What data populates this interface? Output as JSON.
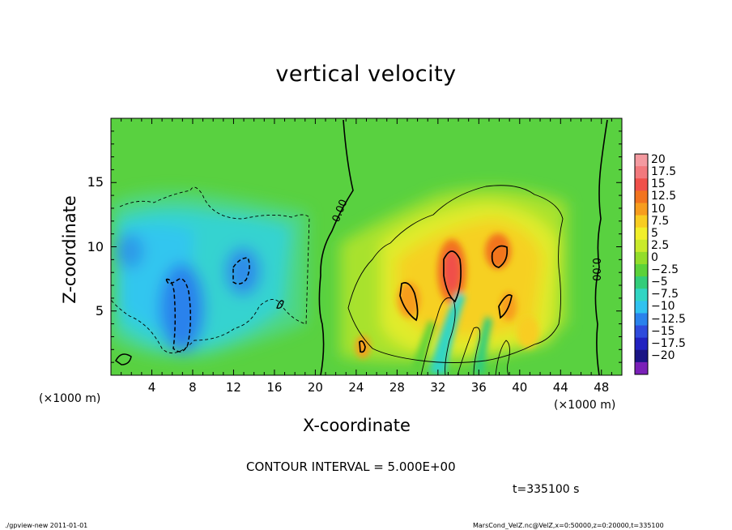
{
  "chart_data": {
    "type": "heatmap",
    "title": "vertical velocity",
    "xlabel": "X-coordinate",
    "ylabel": "Z-coordinate",
    "x_unit": "(×1000 m)",
    "xlim": [
      0,
      50
    ],
    "ylim": [
      0,
      20
    ],
    "x_ticks": [
      4,
      8,
      12,
      16,
      20,
      24,
      28,
      32,
      36,
      40,
      44,
      48
    ],
    "y_ticks": [
      5,
      10,
      15
    ],
    "colorbar": {
      "labels": [
        "20",
        "17.5",
        "15",
        "12.5",
        "10",
        "7.5",
        "5",
        "2.5",
        "0",
        "−2.5",
        "−5",
        "−7.5",
        "−10",
        "−12.5",
        "−15",
        "−17.5",
        "−20"
      ],
      "colors": [
        "#f49aa0",
        "#f2797d",
        "#f0504a",
        "#f2741f",
        "#f79d1e",
        "#f8cd22",
        "#f1ef2a",
        "#c9ea2c",
        "#93dd2a",
        "#5cd23a",
        "#33cd7a",
        "#31d5c3",
        "#30c2f0",
        "#2a82ec",
        "#2f4bdc",
        "#2222c0",
        "#1a1585",
        "#7a20b8"
      ]
    },
    "contour_labels": [
      "0.00",
      "0.00"
    ],
    "contour_interval": "CONTOUR INTERVAL = 5.000E+00",
    "time": "t=335100 s"
  },
  "footer": {
    "left": "./gpview-new   2011-01-01",
    "right": "MarsCond_VelZ.nc@VelZ,x=0:50000,z=0:20000,t=335100"
  }
}
